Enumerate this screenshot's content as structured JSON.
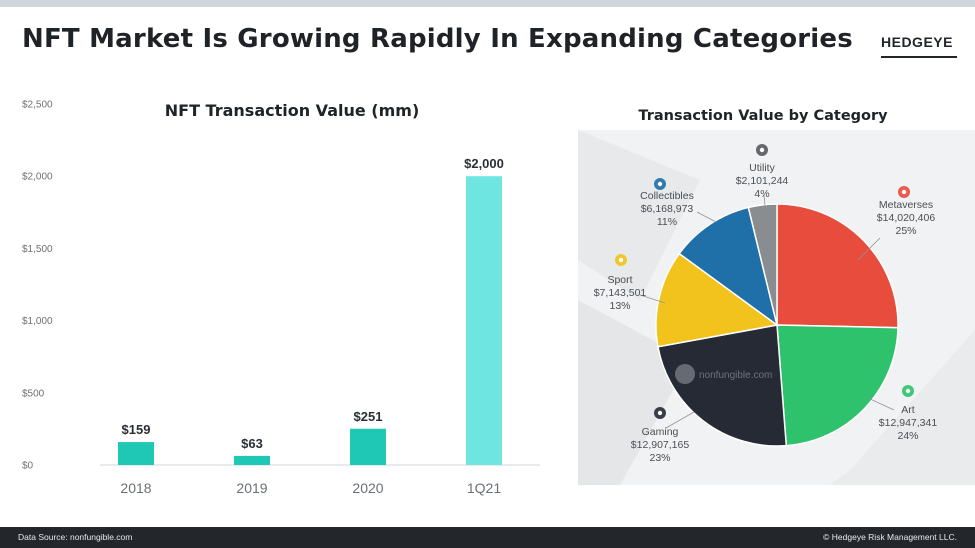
{
  "header": {
    "title": "NFT Market Is Growing Rapidly In Expanding Categories",
    "logo": "HEDGEYE"
  },
  "footer": {
    "source": "Data Source: nonfungible.com",
    "copyright": "© Hedgeye Risk Management LLC."
  },
  "colors": {
    "bar_regular": "#1ec8b5",
    "bar_highlight": "#6ee6df",
    "text_dark": "#202428"
  },
  "chart_data": [
    {
      "type": "bar",
      "title": "NFT Transaction Value (mm)",
      "categories": [
        "2018",
        "2019",
        "2020",
        "1Q21"
      ],
      "values": [
        159,
        63,
        251,
        2000
      ],
      "value_labels": [
        "$159",
        "$63",
        "$251",
        "$2,000"
      ],
      "yticks": [
        "$0",
        "$500",
        "$1,000",
        "$1,500",
        "$2,000",
        "$2,500"
      ],
      "ylim": [
        0,
        2500
      ],
      "grid": false
    },
    {
      "type": "pie",
      "title": "Transaction Value by Category",
      "slices": [
        {
          "name": "Metaverses",
          "value_label": "$14,020,406",
          "percent": 25,
          "value": 14020406,
          "color": "#e84c3d",
          "icon": "map-pin-icon"
        },
        {
          "name": "Art",
          "value_label": "$12,947,341",
          "percent": 24,
          "value": 12947341,
          "color": "#2fc26c",
          "icon": "paint-palette-icon"
        },
        {
          "name": "Gaming",
          "value_label": "$12,907,165",
          "percent": 23,
          "value": 12907165,
          "color": "#262a35",
          "icon": "gamepad-icon"
        },
        {
          "name": "Sport",
          "value_label": "$7,143,501",
          "percent": 13,
          "value": 7143501,
          "color": "#f1c31c",
          "icon": "helmet-icon"
        },
        {
          "name": "Collectibles",
          "value_label": "$6,168,973",
          "percent": 11,
          "value": 6168973,
          "color": "#1f6fa8",
          "icon": "collectible-icon"
        },
        {
          "name": "Utility",
          "value_label": "$2,101,244",
          "percent": 4,
          "value": 2101244,
          "color": "#8a8d8f",
          "icon": "tools-icon"
        }
      ],
      "watermark": "nonfungible.com"
    }
  ]
}
